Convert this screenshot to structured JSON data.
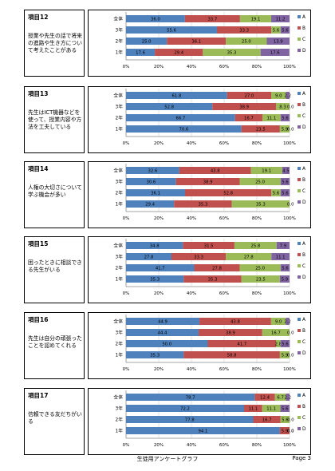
{
  "legend": [
    "A",
    "B",
    "C",
    "D"
  ],
  "colors": [
    "#4f81bd",
    "#c0504d",
    "#9bbb59",
    "#8064a2"
  ],
  "footer": {
    "title": "生徒用アンケートグラフ",
    "page": "Page 3"
  },
  "chart_data": [
    {
      "type": "bar",
      "id": "項目12",
      "question": "授業や先生の話で将来の進路や生き方について考えたことがある",
      "categories": [
        "全体",
        "3年",
        "2年",
        "1年"
      ],
      "series": [
        {
          "name": "A",
          "values": [
            36.0,
            55.6,
            25.0,
            17.6
          ]
        },
        {
          "name": "B",
          "values": [
            33.7,
            33.3,
            36.1,
            29.4
          ]
        },
        {
          "name": "C",
          "values": [
            19.1,
            5.6,
            25.0,
            35.3
          ]
        },
        {
          "name": "D",
          "values": [
            11.2,
            5.6,
            13.9,
            17.6
          ]
        }
      ],
      "xticks": [
        "0%",
        "20%",
        "40%",
        "60%",
        "80%",
        "100%"
      ],
      "xlim": [
        0,
        100
      ]
    },
    {
      "type": "bar",
      "id": "項目13",
      "question": "先生はICT機器などを使って、授業内容や方法を工夫している",
      "categories": [
        "全体",
        "3年",
        "2年",
        "1年"
      ],
      "series": [
        {
          "name": "A",
          "values": [
            61.8,
            52.8,
            66.7,
            70.6
          ]
        },
        {
          "name": "B",
          "values": [
            27.0,
            38.9,
            16.7,
            23.5
          ]
        },
        {
          "name": "C",
          "values": [
            9.0,
            8.3,
            11.1,
            5.9
          ]
        },
        {
          "name": "D",
          "values": [
            2.2,
            0.0,
            5.6,
            0.0
          ]
        }
      ],
      "xticks": [
        "0%",
        "20%",
        "40%",
        "60%",
        "80%",
        "100%"
      ],
      "xlim": [
        0,
        100
      ]
    },
    {
      "type": "bar",
      "id": "項目14",
      "question": "人権の大切さについて学ぶ機会が多い",
      "categories": [
        "全体",
        "3年",
        "2年",
        "1年"
      ],
      "series": [
        {
          "name": "A",
          "values": [
            32.6,
            30.6,
            36.1,
            29.4
          ]
        },
        {
          "name": "B",
          "values": [
            43.8,
            38.9,
            52.8,
            35.3
          ]
        },
        {
          "name": "C",
          "values": [
            19.1,
            25.0,
            5.6,
            35.3
          ]
        },
        {
          "name": "D",
          "values": [
            4.5,
            5.6,
            5.6,
            0.0
          ]
        }
      ],
      "xticks": [
        "0%",
        "20%",
        "40%",
        "60%",
        "80%",
        "100%"
      ],
      "xlim": [
        0,
        100
      ]
    },
    {
      "type": "bar",
      "id": "項目15",
      "question": "困ったときに相談できる先生がいる",
      "categories": [
        "全体",
        "3年",
        "2年",
        "1年"
      ],
      "series": [
        {
          "name": "A",
          "values": [
            34.8,
            27.8,
            41.7,
            35.3
          ]
        },
        {
          "name": "B",
          "values": [
            31.5,
            33.3,
            27.8,
            35.3
          ]
        },
        {
          "name": "C",
          "values": [
            25.8,
            27.8,
            25.0,
            23.5
          ]
        },
        {
          "name": "D",
          "values": [
            7.9,
            11.1,
            5.6,
            5.9
          ]
        }
      ],
      "xticks": [
        "0%",
        "20%",
        "40%",
        "60%",
        "80%",
        "100%"
      ],
      "xlim": [
        0,
        100
      ]
    },
    {
      "type": "bar",
      "id": "項目16",
      "question": "先生は自分の頑張ったことを認めてくれる",
      "categories": [
        "全体",
        "3年",
        "2年",
        "1年"
      ],
      "series": [
        {
          "name": "A",
          "values": [
            44.9,
            44.4,
            50.0,
            35.3
          ]
        },
        {
          "name": "B",
          "values": [
            43.8,
            38.9,
            41.7,
            58.8
          ]
        },
        {
          "name": "C",
          "values": [
            9.0,
            16.7,
            2.8,
            5.9
          ]
        },
        {
          "name": "D",
          "values": [
            2.2,
            0.0,
            5.6,
            0.0
          ]
        }
      ],
      "xticks": [
        "0%",
        "20%",
        "40%",
        "60%",
        "80%",
        "100%"
      ],
      "xlim": [
        0,
        100
      ]
    },
    {
      "type": "bar",
      "id": "項目17",
      "question": "信頼できる友だちがいる",
      "categories": [
        "全体",
        "3年",
        "2年",
        "1年"
      ],
      "series": [
        {
          "name": "A",
          "values": [
            78.7,
            72.2,
            77.8,
            94.1
          ]
        },
        {
          "name": "B",
          "values": [
            12.4,
            11.1,
            16.7,
            5.9
          ]
        },
        {
          "name": "C",
          "values": [
            6.7,
            11.1,
            5.6,
            0.0
          ]
        },
        {
          "name": "D",
          "values": [
            2.2,
            5.6,
            0.0,
            0.0
          ]
        }
      ],
      "xticks": [
        "0%",
        "20%",
        "40%",
        "60%",
        "80%",
        "100%"
      ],
      "xlim": [
        0,
        100
      ]
    }
  ]
}
